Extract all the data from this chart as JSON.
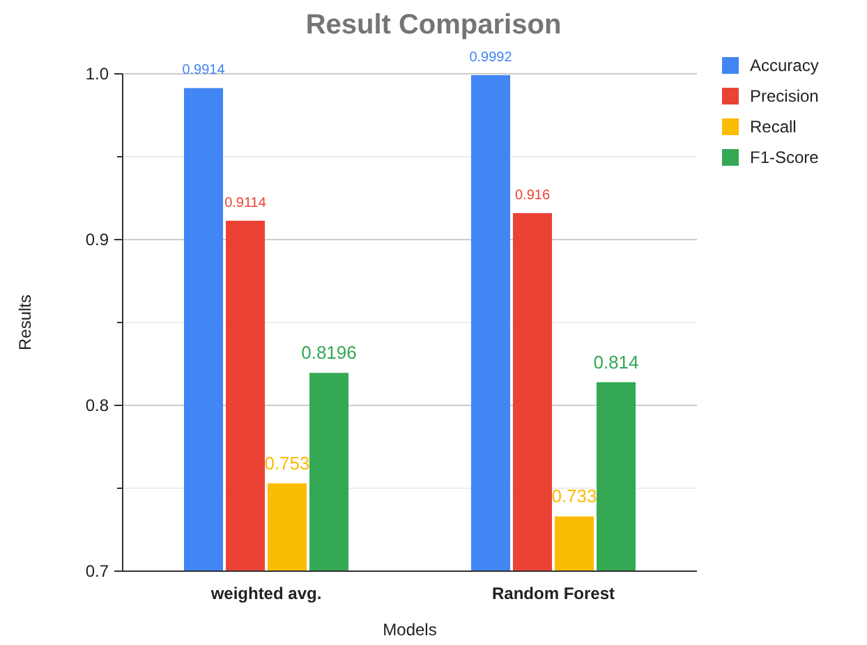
{
  "chart_data": {
    "type": "bar",
    "title": "Result Comparison",
    "xlabel": "Models",
    "ylabel": "Results",
    "categories": [
      "weighted avg.",
      "Random Forest"
    ],
    "series": [
      {
        "name": "Accuracy",
        "color": "#4285f4",
        "values": [
          0.9914,
          0.9992
        ]
      },
      {
        "name": "Precision",
        "color": "#ea4335",
        "values": [
          0.9114,
          0.916
        ]
      },
      {
        "name": "Recall",
        "color": "#fbbc04",
        "values": [
          0.753,
          0.733
        ]
      },
      {
        "name": "F1-Score",
        "color": "#34a853",
        "values": [
          0.8196,
          0.814
        ]
      }
    ],
    "ylim": [
      0.7,
      1.0
    ],
    "yticks": [
      0.7,
      {
        "value": 0.75,
        "label": null
      },
      0.8,
      {
        "value": 0.85,
        "label": null
      },
      0.9,
      {
        "value": 0.95,
        "label": null
      },
      {
        "value": 1.0,
        "label": "1.0"
      }
    ],
    "grid": true,
    "legend": "right",
    "data_labels": true
  }
}
